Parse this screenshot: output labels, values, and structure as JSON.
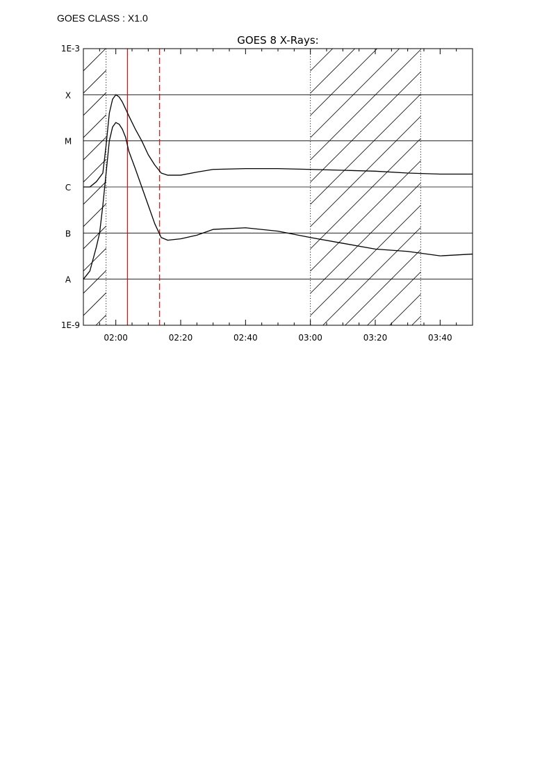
{
  "header": {
    "goes_class_label": "GOES CLASS : X1.0"
  },
  "chart_data": {
    "type": "line",
    "title": "GOES 8 X-Rays:",
    "xlabel": "",
    "ylabel": "",
    "y_scale": "log",
    "ylim": [
      1e-09,
      0.001
    ],
    "xlim_minutes_from_0200": [
      -10,
      110
    ],
    "x_tick_labels": [
      "02:00",
      "02:20",
      "02:40",
      "03:00",
      "03:20",
      "03:40"
    ],
    "x_ticks_minutes_from_0200": [
      0,
      20,
      40,
      60,
      80,
      100
    ],
    "y_axis_end_labels": [
      "1E-9",
      "1E-3"
    ],
    "y_class_labels": [
      {
        "label": "A",
        "value": 1e-08
      },
      {
        "label": "B",
        "value": 1e-07
      },
      {
        "label": "C",
        "value": 1e-06
      },
      {
        "label": "M",
        "value": 1e-05
      },
      {
        "label": "X",
        "value": 0.0001
      }
    ],
    "grid": "horizontal at class boundaries",
    "series": [
      {
        "stroke": "#000000",
        "x_minutes_from_0200": [
          -10,
          -8,
          -6,
          -4,
          -3,
          -2,
          -1,
          0,
          1,
          2,
          4,
          6,
          8,
          10,
          12,
          14,
          16,
          20,
          25,
          30,
          40,
          50,
          60,
          70,
          80,
          90,
          100,
          110
        ],
        "values": [
          1e-06,
          1e-06,
          1.3e-06,
          2e-06,
          8e-06,
          4e-05,
          8e-05,
          0.0001,
          9e-05,
          7e-05,
          3.5e-05,
          1.8e-05,
          1e-05,
          5e-06,
          3e-06,
          2e-06,
          1.8e-06,
          1.8e-06,
          2.1e-06,
          2.4e-06,
          2.5e-06,
          2.5e-06,
          2.4e-06,
          2.3e-06,
          2.2e-06,
          2e-06,
          1.9e-06,
          1.9e-06
        ]
      },
      {
        "stroke": "#000000",
        "x_minutes_from_0200": [
          -10,
          -8,
          -6,
          -5,
          -4,
          -3,
          -2,
          -1,
          0,
          1,
          2,
          3,
          4,
          6,
          8,
          10,
          12,
          14,
          16,
          20,
          25,
          30,
          40,
          50,
          60,
          70,
          80,
          90,
          100,
          110
        ],
        "values": [
          1e-08,
          1.5e-08,
          5e-08,
          1e-07,
          4e-07,
          2e-06,
          1e-05,
          2e-05,
          2.5e-05,
          2.3e-05,
          1.8e-05,
          1.2e-05,
          6e-06,
          2.5e-06,
          1e-06,
          4e-07,
          1.6e-07,
          8e-08,
          7e-08,
          7.5e-08,
          9e-08,
          1.2e-07,
          1.3e-07,
          1.1e-07,
          8e-08,
          6e-08,
          4.5e-08,
          4e-08,
          3.2e-08,
          3.5e-08
        ]
      }
    ],
    "hatched_intervals_minutes_from_0200": [
      [
        -10,
        -3
      ],
      [
        60,
        94
      ]
    ],
    "vertical_lines": [
      {
        "x_minutes_from_0200": -3,
        "style": "dotted",
        "color": "#000000"
      },
      {
        "x_minutes_from_0200": 3.6,
        "style": "solid",
        "color": "#ff0000"
      },
      {
        "x_minutes_from_0200": 13.5,
        "style": "dashed",
        "color": "#ff0000"
      },
      {
        "x_minutes_from_0200": 60,
        "style": "dotted",
        "color": "#000000"
      },
      {
        "x_minutes_from_0200": 94,
        "style": "dotted",
        "color": "#000000"
      }
    ]
  }
}
